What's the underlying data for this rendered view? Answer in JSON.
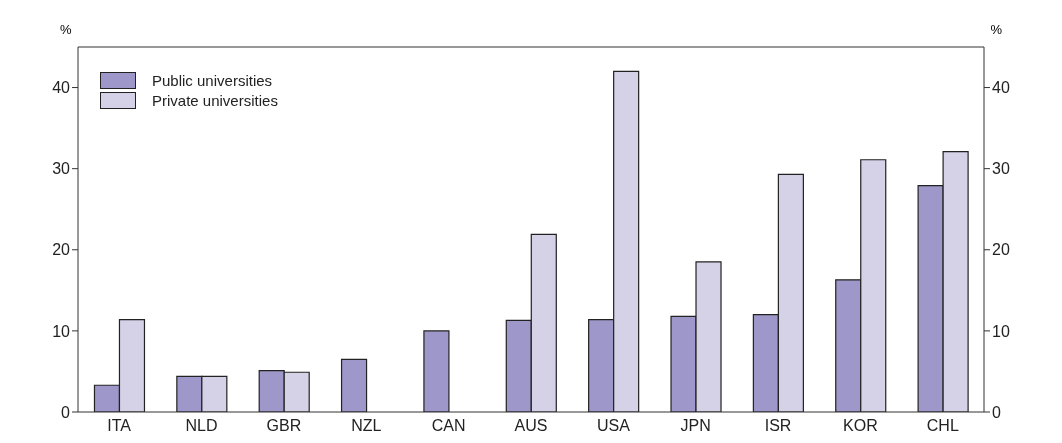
{
  "chart_data": {
    "type": "bar",
    "ylabel": "%",
    "y2label": "%",
    "categories": [
      "ITA",
      "NLD",
      "GBR",
      "NZL",
      "CAN",
      "AUS",
      "USA",
      "JPN",
      "ISR",
      "KOR",
      "CHL"
    ],
    "series": [
      {
        "name": "Public universities",
        "color": "#9d98c9",
        "values": [
          3.3,
          4.4,
          5.1,
          6.5,
          10.0,
          11.3,
          11.4,
          11.8,
          12.0,
          16.3,
          27.9
        ]
      },
      {
        "name": "Private universities",
        "color": "#d5d2e7",
        "values": [
          11.4,
          4.4,
          4.9,
          null,
          null,
          21.9,
          42.0,
          18.5,
          29.3,
          31.1,
          32.1
        ]
      }
    ],
    "ylim": [
      0,
      45
    ],
    "yticks": [
      0,
      10,
      20,
      30,
      40
    ],
    "y2lim": [
      0,
      45
    ],
    "y2ticks": [
      0,
      10,
      20,
      30,
      40
    ],
    "legend": "top left"
  }
}
